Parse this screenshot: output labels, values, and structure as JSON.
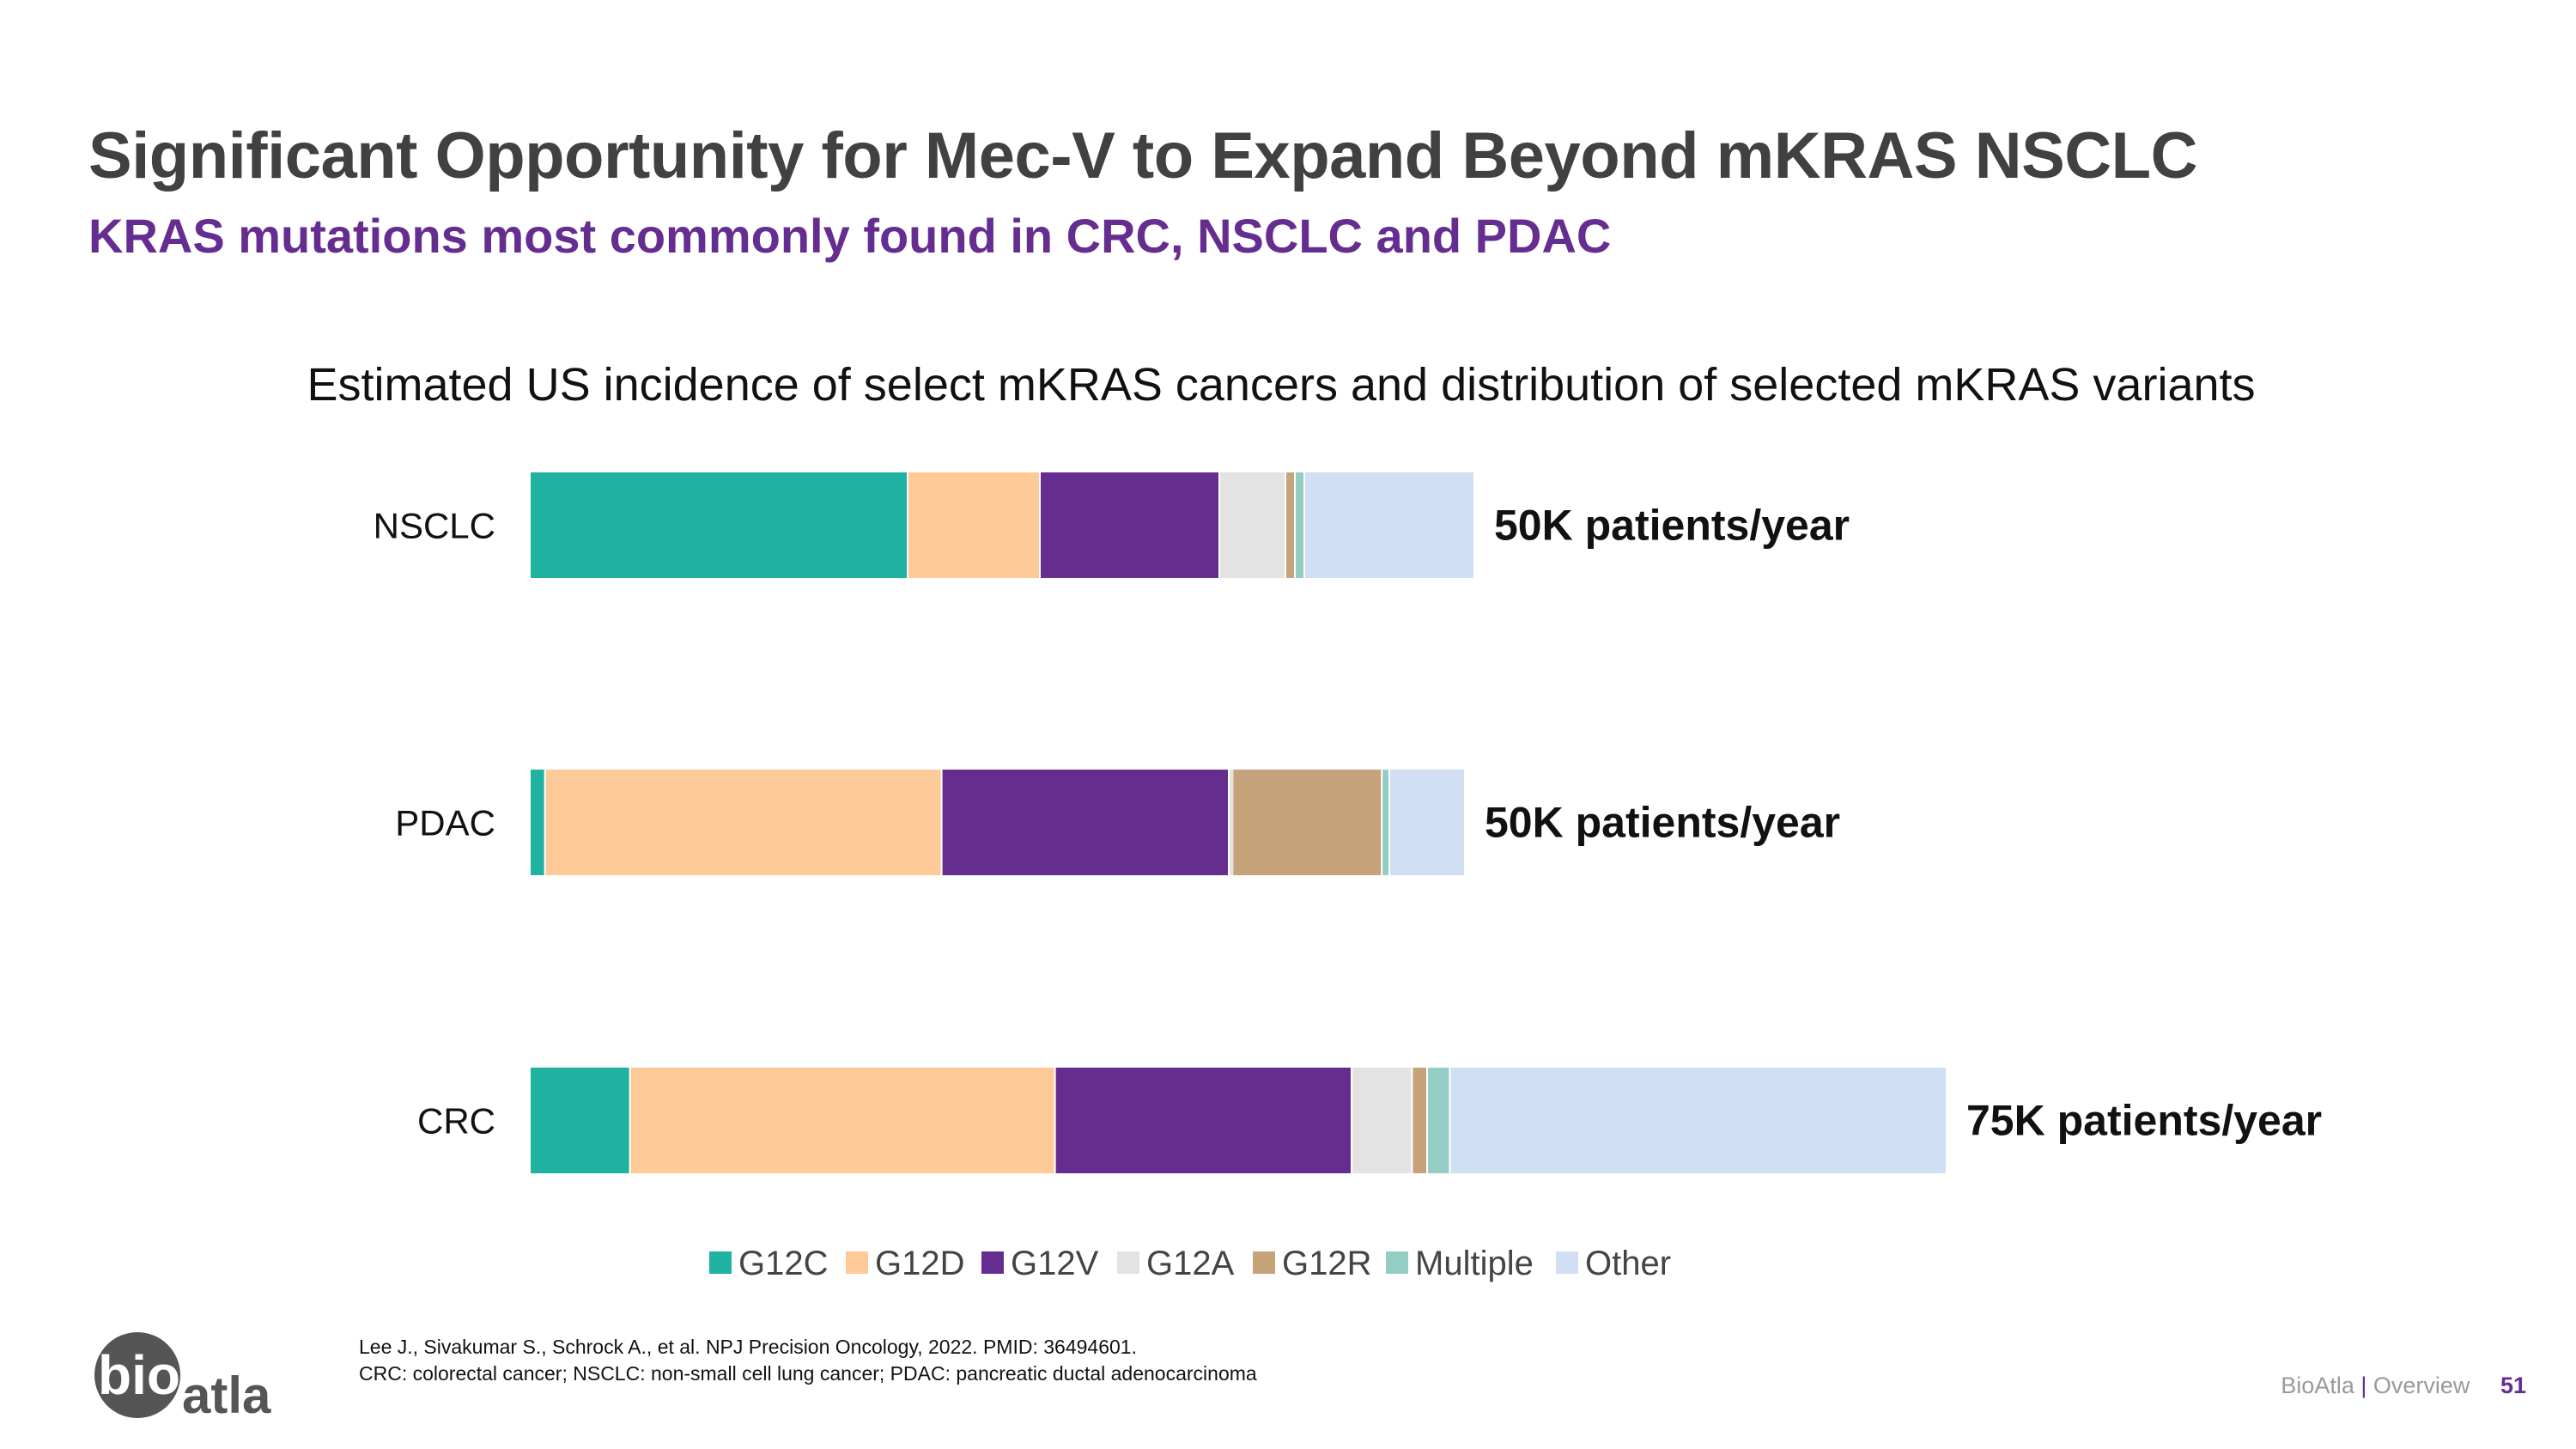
{
  "title": "Significant Opportunity for Mec-V to Expand Beyond mKRAS NSCLC",
  "subtitle": "KRAS mutations most commonly found in CRC, NSCLC and PDAC",
  "chart_data": {
    "type": "bar",
    "orientation": "horizontal",
    "stacked": true,
    "title": "Estimated US incidence of select mKRAS cancers and distribution of selected mKRAS variants",
    "xlabel": "",
    "ylabel": "",
    "categories": [
      "NSCLC",
      "PDAC",
      "CRC"
    ],
    "totals_k": [
      50,
      50,
      75
    ],
    "total_labels": [
      "50K patients/year",
      "50K patients/year",
      "75K patients/year"
    ],
    "series": [
      {
        "name": "G12C",
        "color": "#1fb2a0",
        "values": [
          20.0,
          0.8,
          5.3
        ]
      },
      {
        "name": "G12D",
        "color": "#fdca98",
        "values": [
          7.0,
          21.0,
          22.5
        ]
      },
      {
        "name": "G12V",
        "color": "#662d91",
        "values": [
          9.5,
          15.2,
          15.7
        ]
      },
      {
        "name": "G12A",
        "color": "#e3e3e3",
        "values": [
          3.5,
          0.2,
          3.2
        ]
      },
      {
        "name": "G12R",
        "color": "#c6a37b",
        "values": [
          0.5,
          7.9,
          0.8
        ]
      },
      {
        "name": "Multiple",
        "color": "#93cdc3",
        "values": [
          0.5,
          0.4,
          1.2
        ]
      },
      {
        "name": "Other",
        "color": "#d0dff3",
        "values": [
          9.0,
          4.0,
          26.3
        ]
      }
    ],
    "legend_position": "bottom",
    "grid": false
  },
  "footnote": {
    "line1": "Lee J., Sivakumar S., Schrock A., et al. NPJ Precision Oncology, 2022. PMID: 36494601.",
    "line2": "CRC: colorectal cancer; NSCLC: non-small cell lung cancer; PDAC: pancreatic ductal adenocarcinoma"
  },
  "logo": {
    "text_part1": "bio",
    "text_part2": "atla",
    "color": "#555555"
  },
  "footer": {
    "company": "BioAtla",
    "separator": "|",
    "section": "Overview",
    "page": "51"
  }
}
